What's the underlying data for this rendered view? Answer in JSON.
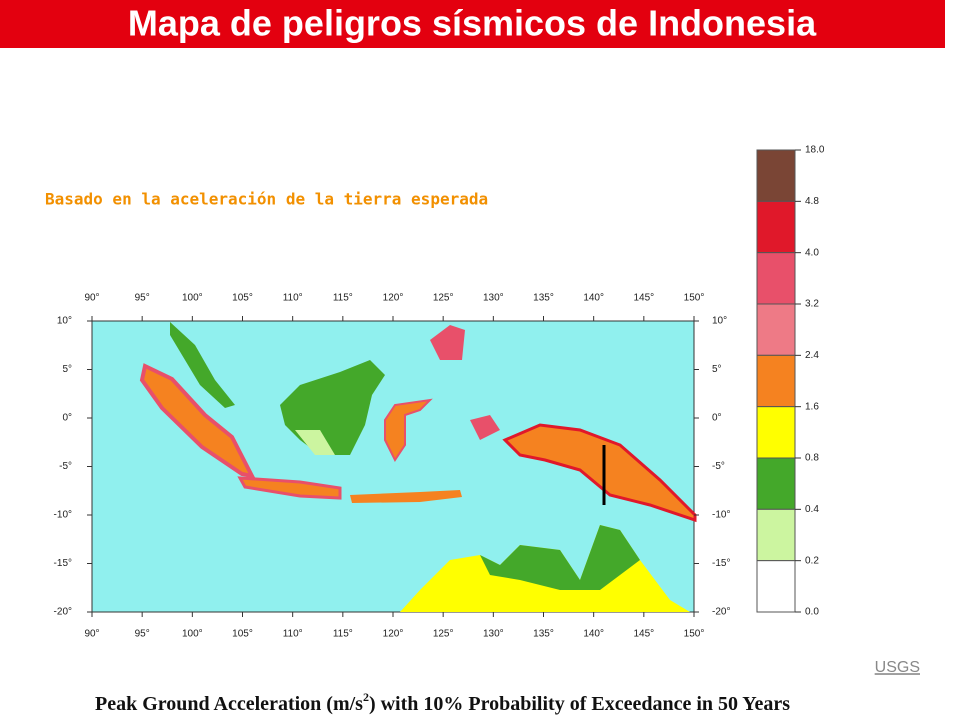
{
  "title": "Mapa de peligros sísmicos de Indonesia",
  "subtitle": "Basado en la aceleración de la tierra esperada",
  "map": {
    "lon_labels": [
      "90°",
      "95°",
      "100°",
      "105°",
      "110°",
      "115°",
      "120°",
      "125°",
      "130°",
      "135°",
      "140°",
      "145°",
      "150°"
    ],
    "lat_labels": [
      "10°",
      "5°",
      "0°",
      "-5°",
      "-10°",
      "-15°",
      "-20°"
    ]
  },
  "legend": {
    "labels": [
      "18.0",
      "4.8",
      "4.0",
      "3.2",
      "2.4",
      "1.6",
      "0.8",
      "0.4",
      "0.2",
      "0.0"
    ],
    "colors": [
      "#7a4535",
      "#e0182a",
      "#e8506a",
      "#ee7a86",
      "#f58220",
      "#ffff00",
      "#44a82a",
      "#ccf5a0",
      "#ffffff"
    ]
  },
  "credit": "USGS",
  "caption": {
    "before": "Peak Ground Acceleration (m/s",
    "sup": "2",
    "after": ") with 10% Probability of Exceedance in 50 Years"
  }
}
